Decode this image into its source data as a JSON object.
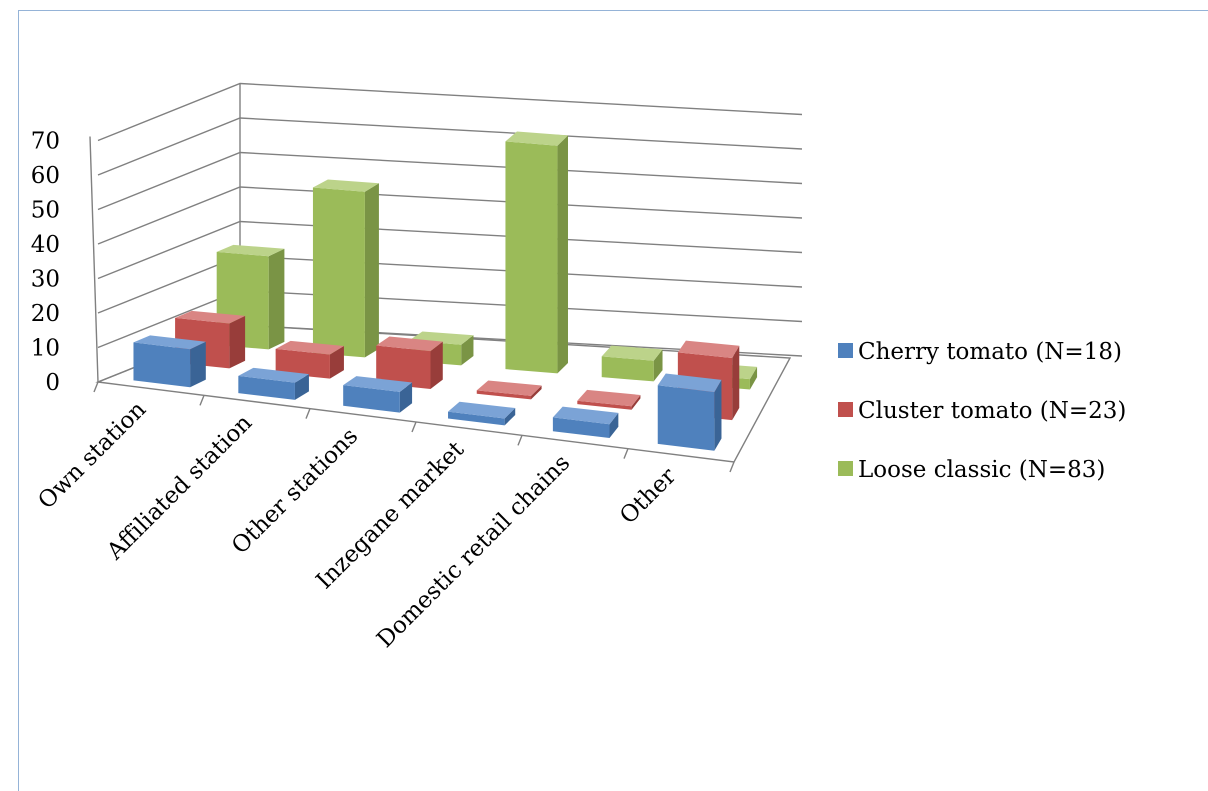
{
  "chart_data": {
    "type": "bar",
    "title": "",
    "categories": [
      "Own station",
      "Affiliated station",
      "Other stations",
      "Inzegane market",
      "Domestic retail chains",
      "Other"
    ],
    "series": [
      {
        "name": "Cherry tomato (N=18)",
        "values": [
          11,
          5,
          6,
          2,
          4,
          17
        ]
      },
      {
        "name": "Cluster tomato (N=23)",
        "values": [
          13,
          7,
          11,
          1,
          1,
          18
        ]
      },
      {
        "name": "Loose classic (N=83)",
        "values": [
          27,
          48,
          6,
          66,
          6,
          3
        ]
      }
    ],
    "ylim": [
      0,
      70
    ],
    "yticks": [
      "0",
      "10",
      "20",
      "30",
      "40",
      "50",
      "60",
      "70"
    ],
    "legend_position": "right",
    "colors": {
      "cherry": {
        "front": "#4f81bd",
        "top": "#7ba3d6",
        "side": "#3a6496"
      },
      "cluster": {
        "front": "#c0504d",
        "top": "#d98583",
        "side": "#983d3a"
      },
      "loose": {
        "front": "#9bbb59",
        "top": "#bcd38a",
        "side": "#7a9445"
      },
      "grid": "#808080"
    }
  }
}
